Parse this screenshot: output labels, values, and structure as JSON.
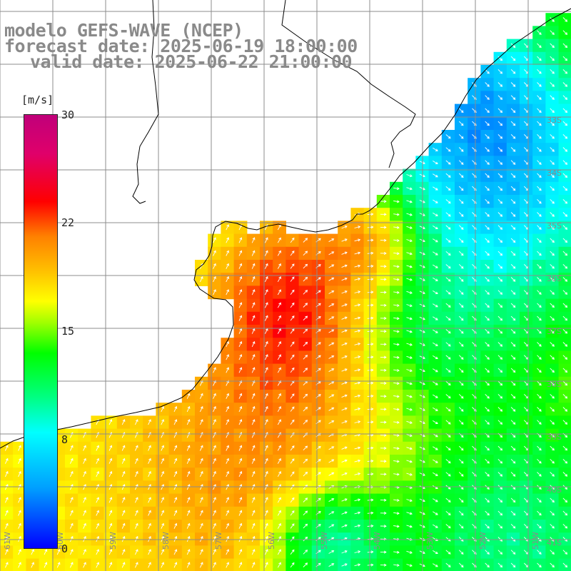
{
  "title": {
    "line1": "modelo GEFS-WAVE (NCEP)",
    "line2": "forecast date: 2025-06-19 18:00:00",
    "line3": "valid date: 2025-06-22 21:00:00"
  },
  "colorbar": {
    "units": "[m/s]",
    "min": 0,
    "max": 30,
    "ticks": [
      "30",
      "22",
      "15",
      "8",
      "0"
    ],
    "tick_values": [
      30,
      22,
      15,
      8,
      0
    ]
  },
  "lat_labels": [
    "33S",
    "34S",
    "35S",
    "36S",
    "37S",
    "38S",
    "39S",
    "40S",
    "41S"
  ],
  "lon_labels": [
    "61W",
    "60W",
    "59W",
    "58W",
    "57W",
    "56W",
    "55W",
    "54W",
    "53W",
    "52W",
    "51W"
  ],
  "colors": {
    "grid": "#8c8c8c",
    "land": "#ffffff",
    "coast": "#000000",
    "arrow": "#ffffff",
    "label": "#8a8a8a"
  }
}
